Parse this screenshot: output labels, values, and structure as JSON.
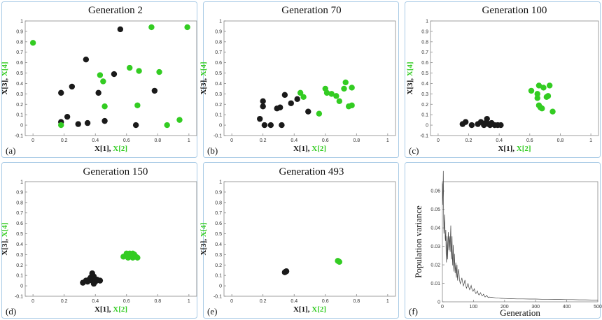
{
  "colors": {
    "group_a": "#1a1a1a",
    "group_b": "#33cc22",
    "frame": "#a9cbe6"
  },
  "chart_data": [
    {
      "type": "scatter",
      "panel_label": "(a)",
      "title": "Generation 2",
      "xlabel_black": "X[1],",
      "xlabel_green": "X[2]",
      "ylabel_black": "X[3],",
      "ylabel_green": "X[4]",
      "xlim": [
        -0.05,
        1.05
      ],
      "ylim": [
        -0.1,
        1.0
      ],
      "xticks": [
        "0",
        "0.2",
        "0.4",
        "0.6",
        "0.8",
        "1"
      ],
      "yticks": [
        "-0.1",
        "0",
        "0.1",
        "0.2",
        "0.3",
        "0.4",
        "0.5",
        "0.6",
        "0.7",
        "0.8",
        "0.9",
        "1"
      ],
      "series": [
        {
          "name": "X[1], X[3]",
          "color": "#1a1a1a",
          "points": [
            [
              0.18,
              0.31
            ],
            [
              0.18,
              0.03
            ],
            [
              0.22,
              0.08
            ],
            [
              0.25,
              0.37
            ],
            [
              0.29,
              0.01
            ],
            [
              0.34,
              0.63
            ],
            [
              0.35,
              0.02
            ],
            [
              0.42,
              0.31
            ],
            [
              0.46,
              0.04
            ],
            [
              0.52,
              0.49
            ],
            [
              0.56,
              0.92
            ],
            [
              0.66,
              0.0
            ],
            [
              0.78,
              0.33
            ]
          ]
        },
        {
          "name": "X[2], X[4]",
          "color": "#33cc22",
          "points": [
            [
              0.0,
              0.79
            ],
            [
              0.18,
              0.0
            ],
            [
              0.43,
              0.48
            ],
            [
              0.45,
              0.42
            ],
            [
              0.46,
              0.18
            ],
            [
              0.62,
              0.55
            ],
            [
              0.67,
              0.19
            ],
            [
              0.68,
              0.52
            ],
            [
              0.76,
              0.94
            ],
            [
              0.81,
              0.51
            ],
            [
              0.86,
              0.0
            ],
            [
              0.94,
              0.05
            ],
            [
              0.99,
              0.94
            ]
          ]
        }
      ]
    },
    {
      "type": "scatter",
      "panel_label": "(b)",
      "title": "Generation 70",
      "xlabel_black": "X[1],",
      "xlabel_green": "X[2]",
      "ylabel_black": "X[3],",
      "ylabel_green": "X[4]",
      "xlim": [
        -0.05,
        1.05
      ],
      "ylim": [
        -0.1,
        1.0
      ],
      "xticks": [
        "0",
        "0.2",
        "0.4",
        "0.6",
        "0.8",
        "1"
      ],
      "yticks": [
        "-0.1",
        "0",
        "0.1",
        "0.2",
        "0.3",
        "0.4",
        "0.5",
        "0.6",
        "0.7",
        "0.8",
        "0.9",
        "1"
      ],
      "series": [
        {
          "name": "X[1], X[3]",
          "color": "#1a1a1a",
          "points": [
            [
              0.18,
              0.06
            ],
            [
              0.2,
              0.18
            ],
            [
              0.2,
              0.23
            ],
            [
              0.21,
              0.0
            ],
            [
              0.25,
              0.0
            ],
            [
              0.29,
              0.16
            ],
            [
              0.31,
              0.17
            ],
            [
              0.32,
              0.0
            ],
            [
              0.34,
              0.29
            ],
            [
              0.38,
              0.21
            ],
            [
              0.42,
              0.25
            ],
            [
              0.49,
              0.13
            ]
          ]
        },
        {
          "name": "X[2], X[4]",
          "color": "#33cc22",
          "points": [
            [
              0.44,
              0.31
            ],
            [
              0.46,
              0.27
            ],
            [
              0.56,
              0.11
            ],
            [
              0.6,
              0.35
            ],
            [
              0.61,
              0.31
            ],
            [
              0.64,
              0.3
            ],
            [
              0.67,
              0.28
            ],
            [
              0.69,
              0.23
            ],
            [
              0.72,
              0.35
            ],
            [
              0.73,
              0.41
            ],
            [
              0.75,
              0.18
            ],
            [
              0.77,
              0.19
            ],
            [
              0.77,
              0.36
            ]
          ]
        }
      ]
    },
    {
      "type": "scatter",
      "panel_label": "(c)",
      "title": "Generation 100",
      "xlabel_black": "X[1],",
      "xlabel_green": "X[2]",
      "ylabel_black": "X[3],",
      "ylabel_green": "X[4]",
      "xlim": [
        -0.05,
        1.05
      ],
      "ylim": [
        -0.1,
        1.0
      ],
      "xticks": [
        "0",
        "0.2",
        "0.4",
        "0.6",
        "0.8",
        "1"
      ],
      "yticks": [
        "-0.1",
        "0",
        "0.1",
        "0.2",
        "0.3",
        "0.4",
        "0.5",
        "0.6",
        "0.7",
        "0.8",
        "0.9",
        "1"
      ],
      "series": [
        {
          "name": "X[1], X[3]",
          "color": "#1a1a1a",
          "points": [
            [
              0.16,
              0.01
            ],
            [
              0.18,
              0.03
            ],
            [
              0.22,
              0.0
            ],
            [
              0.26,
              0.01
            ],
            [
              0.28,
              0.03
            ],
            [
              0.3,
              0.0
            ],
            [
              0.31,
              0.02
            ],
            [
              0.32,
              0.06
            ],
            [
              0.33,
              0.01
            ],
            [
              0.34,
              0.0
            ],
            [
              0.35,
              0.02
            ],
            [
              0.37,
              0.0
            ],
            [
              0.39,
              0.0
            ],
            [
              0.41,
              0.0
            ]
          ]
        },
        {
          "name": "X[2], X[4]",
          "color": "#33cc22",
          "points": [
            [
              0.61,
              0.33
            ],
            [
              0.65,
              0.3
            ],
            [
              0.65,
              0.26
            ],
            [
              0.66,
              0.38
            ],
            [
              0.66,
              0.19
            ],
            [
              0.67,
              0.17
            ],
            [
              0.68,
              0.16
            ],
            [
              0.69,
              0.36
            ],
            [
              0.71,
              0.27
            ],
            [
              0.72,
              0.28
            ],
            [
              0.73,
              0.38
            ],
            [
              0.75,
              0.13
            ]
          ]
        }
      ]
    },
    {
      "type": "scatter",
      "panel_label": "(d)",
      "title": "Generation 150",
      "xlabel_black": "X[1],",
      "xlabel_green": "X[2]",
      "ylabel_black": "X[3],",
      "ylabel_green": "X[4]",
      "xlim": [
        -0.05,
        1.05
      ],
      "ylim": [
        -0.1,
        1.0
      ],
      "xticks": [
        "0",
        "0.2",
        "0.4",
        "0.6",
        "0.8",
        "1"
      ],
      "yticks": [
        "-0.1",
        "0",
        "0.1",
        "0.2",
        "0.3",
        "0.4",
        "0.5",
        "0.6",
        "0.7",
        "0.8",
        "0.9",
        "1"
      ],
      "series": [
        {
          "name": "X[1], X[3]",
          "color": "#1a1a1a",
          "points": [
            [
              0.32,
              0.03
            ],
            [
              0.34,
              0.05
            ],
            [
              0.35,
              0.04
            ],
            [
              0.36,
              0.06
            ],
            [
              0.37,
              0.08
            ],
            [
              0.38,
              0.05
            ],
            [
              0.38,
              0.12
            ],
            [
              0.39,
              0.02
            ],
            [
              0.39,
              0.09
            ],
            [
              0.4,
              0.04
            ],
            [
              0.41,
              0.06
            ],
            [
              0.43,
              0.05
            ]
          ]
        },
        {
          "name": "X[2], X[4]",
          "color": "#33cc22",
          "points": [
            [
              0.58,
              0.28
            ],
            [
              0.6,
              0.3
            ],
            [
              0.61,
              0.27
            ],
            [
              0.62,
              0.31
            ],
            [
              0.63,
              0.29
            ],
            [
              0.64,
              0.27
            ],
            [
              0.65,
              0.3
            ],
            [
              0.66,
              0.28
            ],
            [
              0.67,
              0.27
            ],
            [
              0.6,
              0.31
            ],
            [
              0.64,
              0.31
            ]
          ]
        }
      ]
    },
    {
      "type": "scatter",
      "panel_label": "(e)",
      "title": "Generation 493",
      "xlabel_black": "X[1],",
      "xlabel_green": "X[2]",
      "ylabel_black": "X[3],",
      "ylabel_green": "X[4]",
      "xlim": [
        -0.05,
        1.05
      ],
      "ylim": [
        -0.1,
        1.0
      ],
      "xticks": [
        "0",
        "0.2",
        "0.4",
        "0.6",
        "0.8",
        "1"
      ],
      "yticks": [
        "-0.1",
        "0",
        "0.1",
        "0.2",
        "0.3",
        "0.4",
        "0.5",
        "0.6",
        "0.7",
        "0.8",
        "0.9",
        "1"
      ],
      "series": [
        {
          "name": "X[1], X[3]",
          "color": "#1a1a1a",
          "points": [
            [
              0.34,
              0.13
            ],
            [
              0.35,
              0.14
            ],
            [
              0.345,
              0.135
            ]
          ]
        },
        {
          "name": "X[2], X[4]",
          "color": "#33cc22",
          "points": [
            [
              0.68,
              0.24
            ],
            [
              0.69,
              0.23
            ],
            [
              0.685,
              0.235
            ]
          ]
        }
      ]
    },
    {
      "type": "line",
      "panel_label": "(f)",
      "title": "",
      "xlabel": "Generation",
      "ylabel": "Population variance",
      "xlim": [
        0,
        500
      ],
      "ylim": [
        0,
        0.065
      ],
      "xticks": [
        "0",
        "100",
        "200",
        "300",
        "400",
        "500"
      ],
      "yticks": [
        "0",
        "0.01",
        "0.02",
        "0.03",
        "0.04",
        "0.05",
        "0.06"
      ],
      "x": [
        0,
        2,
        4,
        6,
        8,
        10,
        12,
        14,
        16,
        18,
        20,
        22,
        24,
        26,
        28,
        30,
        32,
        34,
        36,
        38,
        40,
        42,
        44,
        46,
        48,
        50,
        55,
        60,
        65,
        70,
        75,
        80,
        85,
        90,
        95,
        100,
        105,
        110,
        115,
        120,
        125,
        130,
        135,
        140,
        145,
        150,
        160,
        170,
        180,
        190,
        200,
        220,
        240,
        260,
        280,
        300,
        320,
        340,
        360,
        380,
        400,
        420,
        440,
        460,
        480,
        500
      ],
      "values": [
        0.064,
        0.06,
        0.045,
        0.04,
        0.042,
        0.033,
        0.026,
        0.03,
        0.028,
        0.032,
        0.034,
        0.03,
        0.033,
        0.035,
        0.028,
        0.03,
        0.024,
        0.026,
        0.02,
        0.022,
        0.019,
        0.018,
        0.016,
        0.017,
        0.014,
        0.015,
        0.012,
        0.011,
        0.0105,
        0.01,
        0.009,
        0.0085,
        0.008,
        0.0075,
        0.007,
        0.006,
        0.0055,
        0.005,
        0.0045,
        0.0042,
        0.004,
        0.0035,
        0.0032,
        0.003,
        0.0028,
        0.0026,
        0.0024,
        0.0022,
        0.002,
        0.0019,
        0.0018,
        0.0017,
        0.0016,
        0.0016,
        0.0015,
        0.0015,
        0.0014,
        0.0014,
        0.0013,
        0.0013,
        0.0012,
        0.0012,
        0.0011,
        0.0011,
        0.001,
        0.001
      ]
    }
  ]
}
